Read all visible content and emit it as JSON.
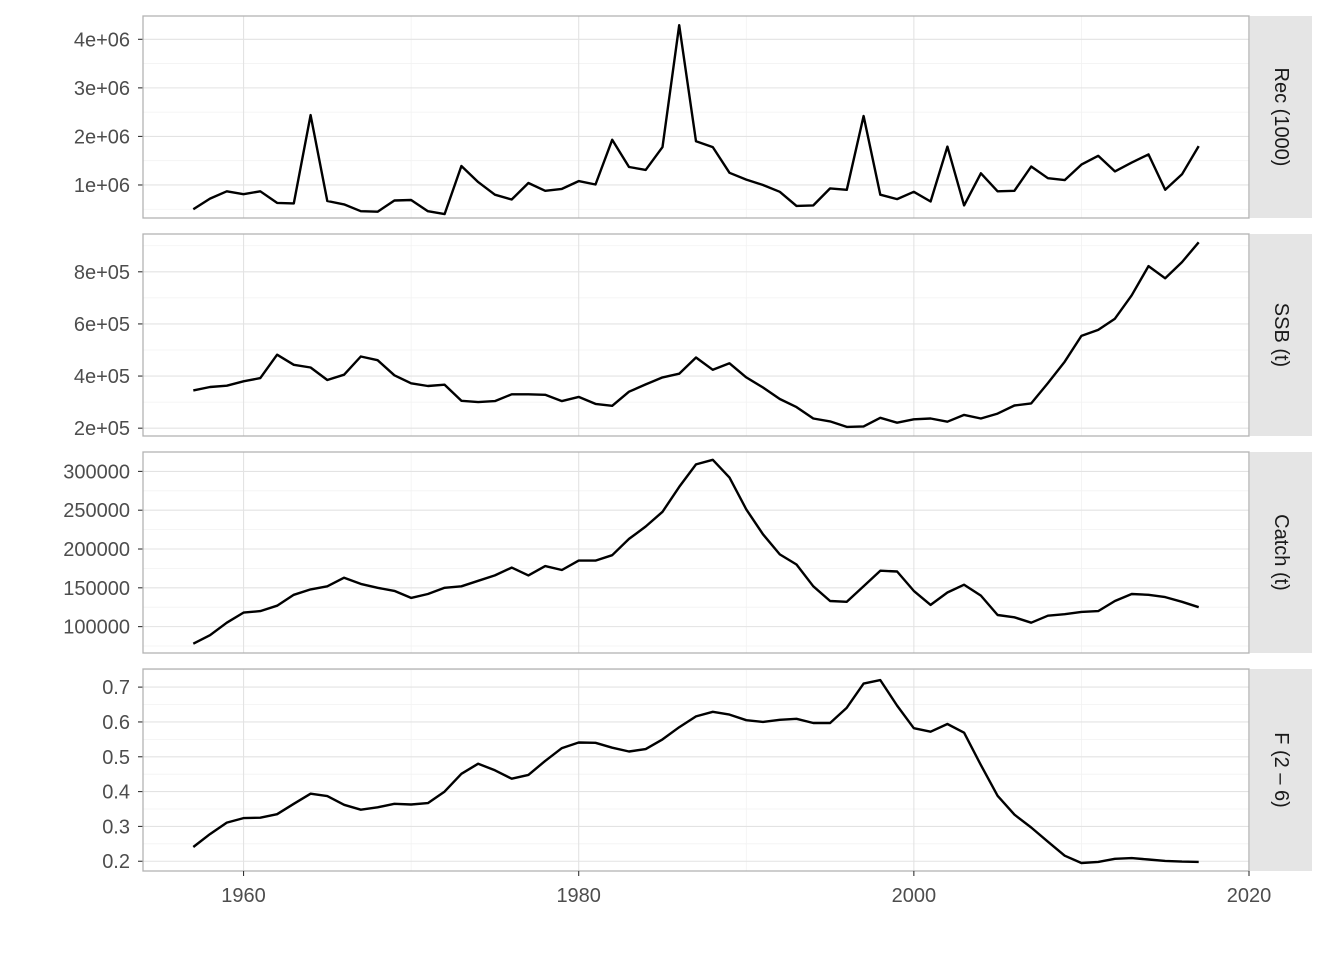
{
  "chart_data": {
    "type": "line",
    "x_ticks": [
      1960,
      1980,
      2000,
      2020
    ],
    "xlim": [
      1954,
      2020
    ],
    "grid": true,
    "series_color": "#000000",
    "panels": [
      {
        "strip_label": "Rec  (1000)",
        "ylim": [
          320000,
          4480000
        ],
        "y_ticks": [
          1000000,
          2000000,
          3000000,
          4000000
        ],
        "y_tick_labels": [
          "1e+06",
          "2e+06",
          "3e+06",
          "4e+06"
        ],
        "x": [
          1957,
          1958,
          1959,
          1960,
          1961,
          1962,
          1963,
          1964,
          1965,
          1966,
          1967,
          1968,
          1969,
          1970,
          1971,
          1972,
          1973,
          1974,
          1975,
          1976,
          1977,
          1978,
          1979,
          1980,
          1981,
          1982,
          1983,
          1984,
          1985,
          1986,
          1987,
          1988,
          1989,
          1990,
          1991,
          1992,
          1993,
          1994,
          1995,
          1996,
          1997,
          1998,
          1999,
          2000,
          2001,
          2002,
          2003,
          2004,
          2005,
          2006,
          2007,
          2008,
          2009,
          2010,
          2011,
          2012,
          2013,
          2014,
          2015,
          2016,
          2017
        ],
        "y": [
          500000,
          720000,
          870000,
          810000,
          870000,
          630000,
          620000,
          2440000,
          670000,
          600000,
          460000,
          450000,
          680000,
          690000,
          460000,
          400000,
          1390000,
          1060000,
          800000,
          700000,
          1040000,
          880000,
          920000,
          1080000,
          1010000,
          1930000,
          1370000,
          1310000,
          1780000,
          4290000,
          1900000,
          1780000,
          1250000,
          1110000,
          1000000,
          860000,
          570000,
          580000,
          930000,
          900000,
          2420000,
          800000,
          710000,
          860000,
          660000,
          1790000,
          580000,
          1240000,
          870000,
          880000,
          1380000,
          1140000,
          1100000,
          1420000,
          1600000,
          1280000,
          1460000,
          1630000,
          900000,
          1220000,
          1800000
        ]
      },
      {
        "strip_label": "SSB  (t)",
        "ylim": [
          170000,
          945000
        ],
        "y_ticks": [
          200000,
          400000,
          600000,
          800000
        ],
        "y_tick_labels": [
          "2e+05",
          "4e+05",
          "6e+05",
          "8e+05"
        ],
        "x": [
          1957,
          1958,
          1959,
          1960,
          1961,
          1962,
          1963,
          1964,
          1965,
          1966,
          1967,
          1968,
          1969,
          1970,
          1971,
          1972,
          1973,
          1974,
          1975,
          1976,
          1977,
          1978,
          1979,
          1980,
          1981,
          1982,
          1983,
          1984,
          1985,
          1986,
          1987,
          1988,
          1989,
          1990,
          1991,
          1992,
          1993,
          1994,
          1995,
          1996,
          1997,
          1998,
          1999,
          2000,
          2001,
          2002,
          2003,
          2004,
          2005,
          2006,
          2007,
          2008,
          2009,
          2010,
          2011,
          2012,
          2013,
          2014,
          2015,
          2016,
          2017
        ],
        "y": [
          345000,
          358000,
          363000,
          380000,
          392000,
          482000,
          443000,
          433000,
          385000,
          405000,
          475000,
          461000,
          403000,
          372000,
          362000,
          367000,
          305000,
          300000,
          304000,
          330000,
          330000,
          328000,
          304000,
          320000,
          293000,
          286000,
          340000,
          368000,
          395000,
          409000,
          471000,
          424000,
          449000,
          395000,
          356000,
          312000,
          281000,
          237000,
          226000,
          205000,
          207000,
          240000,
          221000,
          234000,
          237000,
          225000,
          251000,
          237000,
          256000,
          287000,
          295000,
          373000,
          455000,
          554000,
          577000,
          620000,
          710000,
          822000,
          775000,
          837000,
          913000
        ]
      },
      {
        "strip_label": "Catch  (t)",
        "ylim": [
          66000,
          325000
        ],
        "y_ticks": [
          100000,
          150000,
          200000,
          250000,
          300000
        ],
        "y_tick_labels": [
          "100000",
          "150000",
          "200000",
          "250000",
          "300000"
        ],
        "x": [
          1957,
          1958,
          1959,
          1960,
          1961,
          1962,
          1963,
          1964,
          1965,
          1966,
          1967,
          1968,
          1969,
          1970,
          1971,
          1972,
          1973,
          1974,
          1975,
          1976,
          1977,
          1978,
          1979,
          1980,
          1981,
          1982,
          1983,
          1984,
          1985,
          1986,
          1987,
          1988,
          1989,
          1990,
          1991,
          1992,
          1993,
          1994,
          1995,
          1996,
          1997,
          1998,
          1999,
          2000,
          2001,
          2002,
          2003,
          2004,
          2005,
          2006,
          2007,
          2008,
          2009,
          2010,
          2011,
          2012,
          2013,
          2014,
          2015,
          2016,
          2017
        ],
        "y": [
          78000,
          89000,
          105000,
          118000,
          120000,
          127000,
          141000,
          148000,
          152000,
          163000,
          155000,
          150000,
          146000,
          137000,
          142000,
          150000,
          152000,
          159000,
          166000,
          176000,
          166000,
          178000,
          173000,
          185000,
          185000,
          192000,
          213000,
          229000,
          248000,
          280000,
          309000,
          315000,
          292000,
          251000,
          219000,
          193000,
          180000,
          152000,
          133000,
          132000,
          152000,
          172000,
          171000,
          146000,
          128000,
          144000,
          154000,
          140000,
          115000,
          112000,
          105000,
          114000,
          116000,
          119000,
          120000,
          133000,
          142000,
          141000,
          138000,
          132000,
          125000
        ]
      },
      {
        "strip_label": "F  (2 – 6)",
        "ylim": [
          0.172,
          0.752
        ],
        "y_ticks": [
          0.2,
          0.3,
          0.4,
          0.5,
          0.6,
          0.7
        ],
        "y_tick_labels": [
          "0.2",
          "0.3",
          "0.4",
          "0.5",
          "0.6",
          "0.7"
        ],
        "x": [
          1957,
          1958,
          1959,
          1960,
          1961,
          1962,
          1963,
          1964,
          1965,
          1966,
          1967,
          1968,
          1969,
          1970,
          1971,
          1972,
          1973,
          1974,
          1975,
          1976,
          1977,
          1978,
          1979,
          1980,
          1981,
          1982,
          1983,
          1984,
          1985,
          1986,
          1987,
          1988,
          1989,
          1990,
          1991,
          1992,
          1993,
          1994,
          1995,
          1996,
          1997,
          1998,
          1999,
          2000,
          2001,
          2002,
          2003,
          2004,
          2005,
          2006,
          2007,
          2008,
          2009,
          2010,
          2011,
          2012,
          2013,
          2014,
          2015,
          2016,
          2017
        ],
        "y": [
          0.241,
          0.278,
          0.311,
          0.324,
          0.325,
          0.335,
          0.365,
          0.394,
          0.387,
          0.362,
          0.348,
          0.355,
          0.365,
          0.363,
          0.367,
          0.4,
          0.451,
          0.48,
          0.461,
          0.437,
          0.448,
          0.488,
          0.525,
          0.541,
          0.54,
          0.526,
          0.515,
          0.522,
          0.55,
          0.585,
          0.616,
          0.629,
          0.621,
          0.605,
          0.6,
          0.606,
          0.609,
          0.597,
          0.597,
          0.641,
          0.71,
          0.72,
          0.647,
          0.582,
          0.572,
          0.594,
          0.569,
          0.476,
          0.388,
          0.334,
          0.297,
          0.256,
          0.216,
          0.195,
          0.198,
          0.207,
          0.209,
          0.205,
          0.201,
          0.199,
          0.198
        ]
      }
    ]
  }
}
